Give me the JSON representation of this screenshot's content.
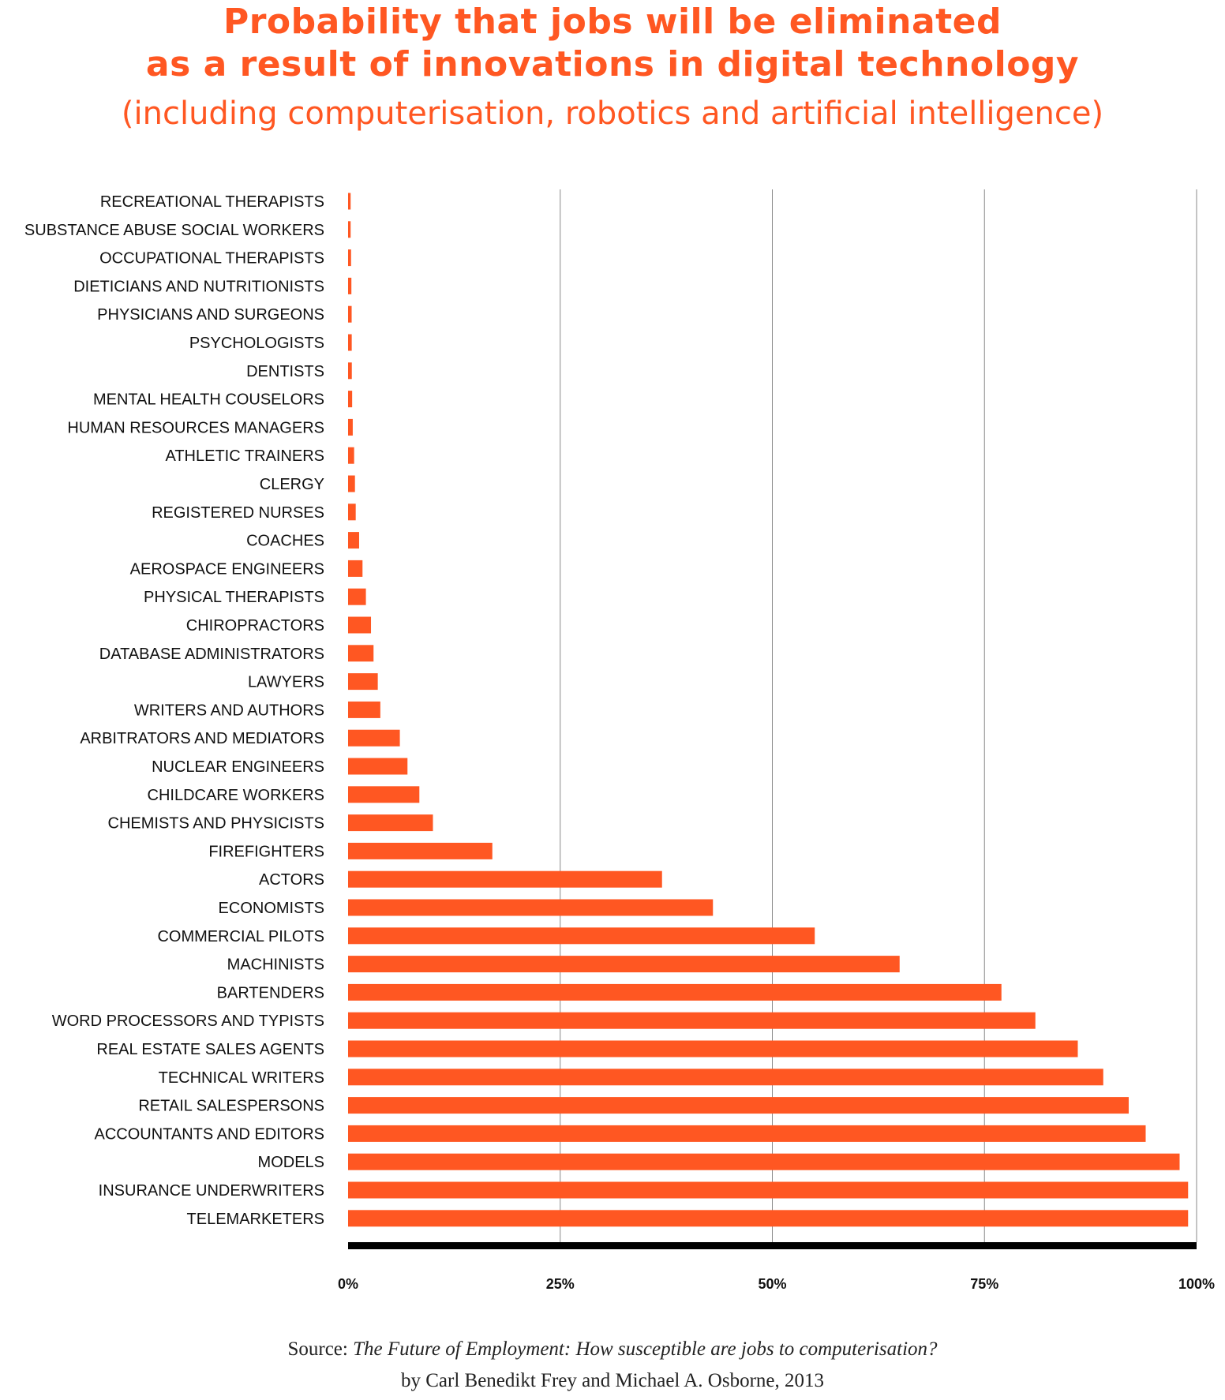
{
  "header": {
    "title_line1": "Probability that jobs will be eliminated",
    "title_line2": "as a result of innovations in digital technology",
    "subtitle": "(including computerisation, robotics and artificial intelligence)"
  },
  "colors": {
    "accent": "#FF5722",
    "bar": "#FF5722",
    "gridline": "#888888",
    "axis": "#000000"
  },
  "chart_data": {
    "type": "bar",
    "orientation": "horizontal",
    "categories": [
      "RECREATIONAL THERAPISTS",
      "SUBSTANCE ABUSE SOCIAL WORKERS",
      "OCCUPATIONAL THERAPISTS",
      "DIETICIANS AND NUTRITIONISTS",
      "PHYSICIANS AND SURGEONS",
      "PSYCHOLOGISTS",
      "DENTISTS",
      "MENTAL HEALTH COUSELORS",
      "HUMAN RESOURCES MANAGERS",
      "ATHLETIC TRAINERS",
      "CLERGY",
      "REGISTERED NURSES",
      "COACHES",
      "AEROSPACE ENGINEERS",
      "PHYSICAL THERAPISTS",
      "CHIROPRACTORS",
      "DATABASE ADMINISTRATORS",
      "LAWYERS",
      "WRITERS AND AUTHORS",
      "ARBITRATORS AND MEDIATORS",
      "NUCLEAR ENGINEERS",
      "CHILDCARE WORKERS",
      "CHEMISTS AND PHYSICISTS",
      "FIREFIGHTERS",
      "ACTORS",
      "ECONOMISTS",
      "COMMERCIAL PILOTS",
      "MACHINISTS",
      "BARTENDERS",
      "WORD PROCESSORS AND TYPISTS",
      "REAL ESTATE SALES AGENTS",
      "TECHNICAL WRITERS",
      "RETAIL SALESPERSONS",
      "ACCOUNTANTS AND EDITORS",
      "MODELS",
      "INSURANCE UNDERWRITERS",
      "TELEMARKETERS"
    ],
    "values": [
      0.3,
      0.3,
      0.35,
      0.39,
      0.42,
      0.43,
      0.44,
      0.48,
      0.55,
      0.71,
      0.81,
      0.9,
      1.3,
      1.7,
      2.1,
      2.7,
      3.0,
      3.5,
      3.8,
      6.1,
      7.0,
      8.4,
      10.0,
      17.0,
      37.0,
      43.0,
      55.0,
      65.0,
      77.0,
      81.0,
      86.0,
      89.0,
      92.0,
      94.0,
      98.0,
      99.0,
      99.0
    ],
    "xlim": [
      0,
      100
    ],
    "xticks": [
      0,
      25,
      50,
      75,
      100
    ],
    "xtick_labels": [
      "0%",
      "25%",
      "50%",
      "75%",
      "100%"
    ],
    "grid": "vertical"
  },
  "source": {
    "prefix": "Source: ",
    "title": "The Future of Employment: How susceptible are jobs to computerisation?",
    "byline": "by Carl Benedikt Frey and Michael A. Osborne, 2013"
  }
}
